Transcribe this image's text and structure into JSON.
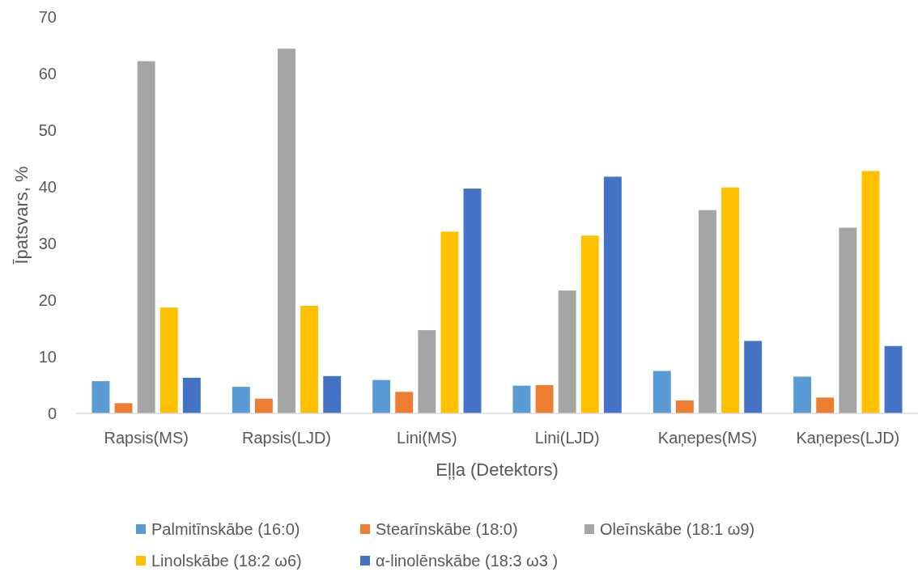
{
  "chart_data": {
    "type": "bar",
    "xlabel": "Eļļa (Detektors)",
    "ylabel": "Īpatsvars, %",
    "categories": [
      "Rapsis(MS)",
      "Rapsis(LJD)",
      "Lini(MS)",
      "Lini(LJD)",
      "Kaņepes(MS)",
      "Kaņepes(LJD)"
    ],
    "series": [
      {
        "name": "Palmitīnskābe (16:0)",
        "color": "#5b9bd5",
        "values": [
          5.7,
          4.7,
          5.9,
          4.9,
          7.5,
          6.5
        ]
      },
      {
        "name": "Stearīnskābe (18:0)",
        "color": "#ed7d31",
        "values": [
          1.8,
          2.6,
          3.8,
          5.0,
          2.3,
          2.8
        ]
      },
      {
        "name": "Oleīnskābe (18:1 ω9)",
        "color": "#a5a5a5",
        "values": [
          62.2,
          64.4,
          14.7,
          21.7,
          35.9,
          32.8
        ]
      },
      {
        "name": "Linolskābe (18:2 ω6)",
        "color": "#ffc000",
        "values": [
          18.7,
          19.0,
          32.1,
          31.4,
          39.9,
          42.8
        ]
      },
      {
        "name": "α-linolēnskābe (18:3 ω3 )",
        "color": "#4472c4",
        "values": [
          6.3,
          6.6,
          39.7,
          41.8,
          12.8,
          11.9
        ]
      }
    ],
    "ylim": [
      0,
      70
    ],
    "yticks": [
      0,
      10,
      20,
      30,
      40,
      50,
      60,
      70
    ],
    "legend": "bottom"
  }
}
